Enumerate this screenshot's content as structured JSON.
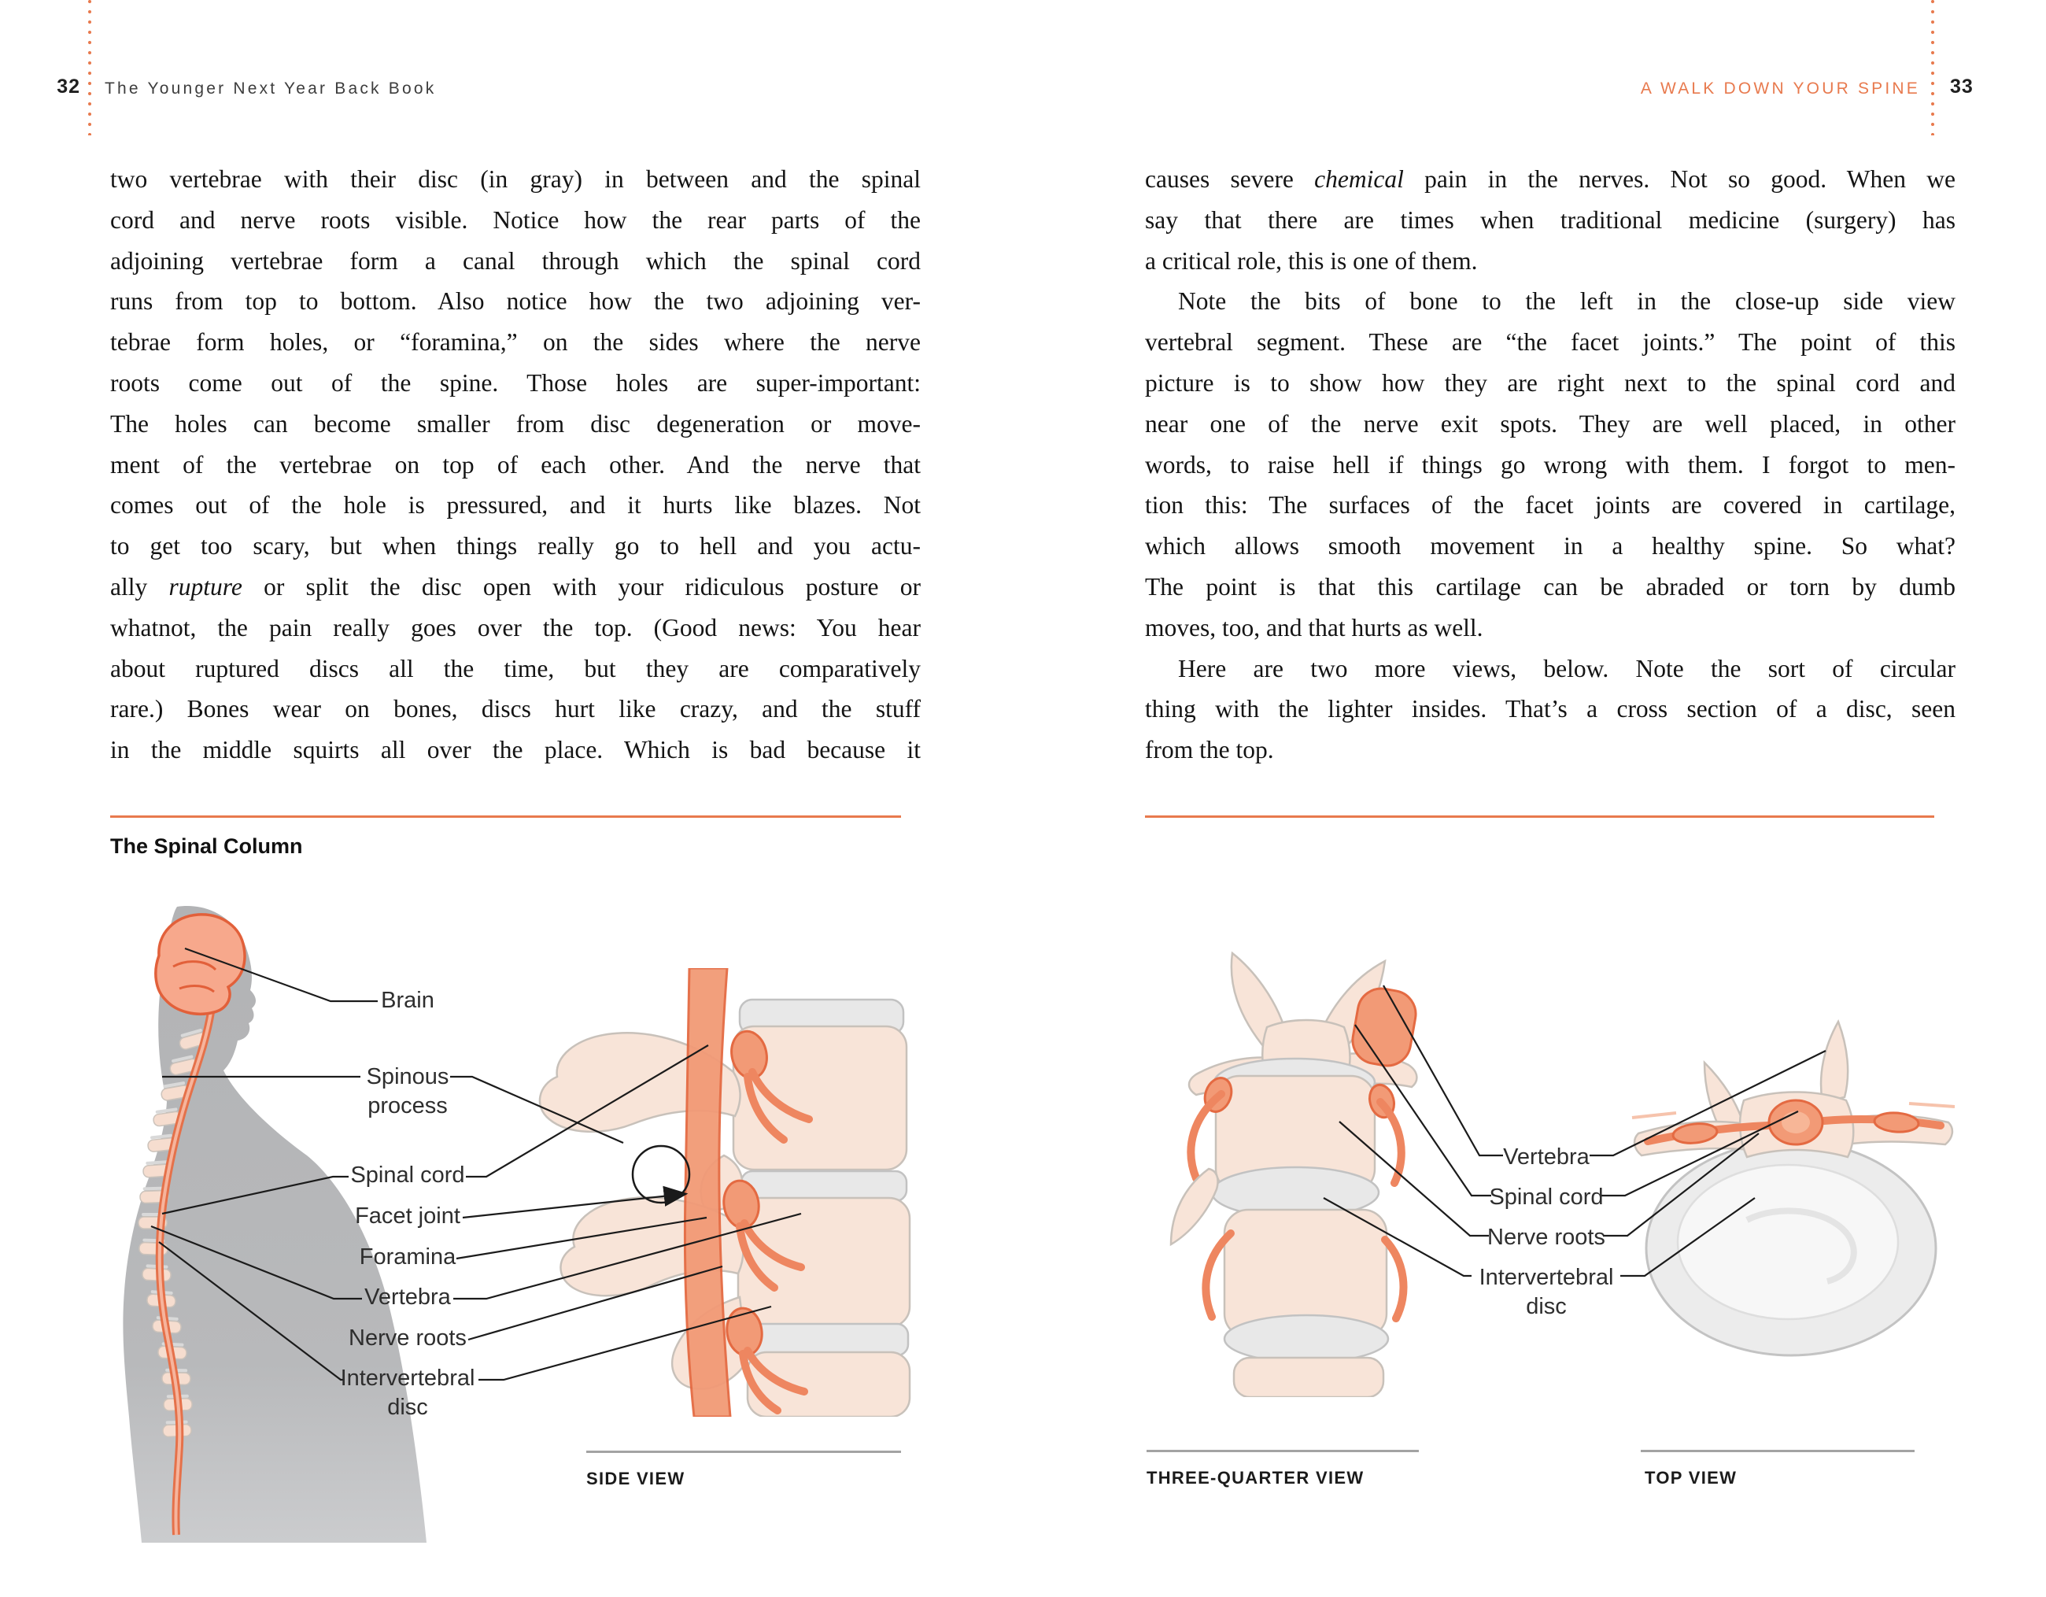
{
  "spread": {
    "left": {
      "page_number": "32",
      "running_title": "The Younger Next Year Back Book",
      "figure_title": "The Spinal Column",
      "caption": "SIDE VIEW",
      "labels": [
        "Brain",
        "Spinous\nprocess",
        "Spinal cord",
        "Facet joint",
        "Foramina",
        "Vertebra",
        "Nerve roots",
        "Intervertebral\ndisc"
      ],
      "lines": [
        {
          "t": "two vertebrae with their disc (in gray) in between and the spinal",
          "j": true,
          "i": false
        },
        {
          "t": "cord and nerve roots visible. Notice how the rear parts of the",
          "j": true,
          "i": false
        },
        {
          "t": "adjoining vertebrae form a canal through which the spinal cord",
          "j": true,
          "i": false
        },
        {
          "t": "runs from top to bottom. Also notice how the two adjoining ver-",
          "j": true,
          "i": false
        },
        {
          "t": "tebrae form holes, or “foramina,” on the sides where the nerve",
          "j": true,
          "i": false
        },
        {
          "t": "roots come out of the spine. Those holes are super-important:",
          "j": true,
          "i": false
        },
        {
          "t": "The holes can become smaller from disc degeneration or move-",
          "j": true,
          "i": false
        },
        {
          "t": "ment of the vertebrae on top of each other. And the nerve that",
          "j": true,
          "i": false
        },
        {
          "t": "comes out of the hole is pressured, and it hurts like blazes. Not",
          "j": true,
          "i": false
        },
        {
          "t": "to get too scary, but when things really go to hell and you actu-",
          "j": true,
          "i": false
        },
        {
          "t": "ally rupture or split the disc open with your ridiculous posture or",
          "j": true,
          "i": false
        },
        {
          "t": "whatnot, the pain really goes over the top. (Good news: You hear",
          "j": true,
          "i": false
        },
        {
          "t": "about ruptured discs all the time, but they are comparatively",
          "j": true,
          "i": false
        },
        {
          "t": "rare.) Bones wear on bones, discs hurt like crazy, and the stuff",
          "j": true,
          "i": false
        },
        {
          "t": "in the middle squirts all over the place. Which is bad because it",
          "j": true,
          "i": false
        }
      ]
    },
    "right": {
      "page_number": "33",
      "running_title": "A WALK DOWN YOUR SPINE",
      "captions": [
        "THREE-QUARTER VIEW",
        "TOP VIEW"
      ],
      "labels": [
        "Vertebra",
        "Spinal cord",
        "Nerve roots",
        "Intervertebral\ndisc"
      ],
      "lines": [
        {
          "t": "causes severe chemical pain in the nerves. Not so good. When we",
          "j": true,
          "i": false
        },
        {
          "t": "say that there are times when traditional medicine (surgery) has",
          "j": true,
          "i": false
        },
        {
          "t": "a critical role, this is one of them.",
          "j": false,
          "i": false
        },
        {
          "t": "Note the bits of bone to the left in the close-up side view",
          "j": true,
          "i": true
        },
        {
          "t": "vertebral segment. These are “the facet joints.” The point of this",
          "j": true,
          "i": false
        },
        {
          "t": "picture is to show how they are right next to the spinal cord and",
          "j": true,
          "i": false
        },
        {
          "t": "near one of the nerve exit spots. They are well placed, in other",
          "j": true,
          "i": false
        },
        {
          "t": "words, to raise hell if things go wrong with them. I forgot to men-",
          "j": true,
          "i": false
        },
        {
          "t": "tion this: The surfaces of the facet joints are covered in cartilage,",
          "j": true,
          "i": false
        },
        {
          "t": "which allows smooth movement in a healthy spine. So what?",
          "j": true,
          "i": false
        },
        {
          "t": "The point is that this cartilage can be abraded or torn by dumb",
          "j": true,
          "i": false
        },
        {
          "t": "moves, too, and that hurts as well.",
          "j": false,
          "i": false
        },
        {
          "t": "Here are two more views, below. Note the sort of circular",
          "j": true,
          "i": true
        },
        {
          "t": "thing with the lighter insides. That’s a cross section of a disc, seen",
          "j": true,
          "i": false
        },
        {
          "t": "from the top.",
          "j": false,
          "i": false
        }
      ]
    }
  },
  "italic_words": [
    "rupture",
    "chemical"
  ],
  "colors": {
    "accent": "#e87a4e",
    "bone_fill": "#f8e4d8",
    "bone_stroke": "#c8c1ba",
    "orange_fill": "#f29a76",
    "orange_stroke": "#e46a42",
    "silhouette_gray": "#b7b8ba",
    "disc_gray": "#e8e8e8",
    "body_text": "#141414"
  }
}
